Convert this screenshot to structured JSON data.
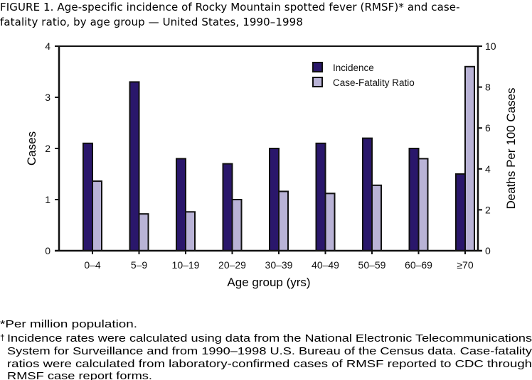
{
  "title_lines": [
    "FIGURE 1. Age-specific incidence of Rocky Mountain  spotted fever (RMSF)* and case-",
    "fatality ratio, by age  group  —  United  States,  1990–1998"
  ],
  "chart_data": {
    "type": "bar",
    "categories": [
      "0–4",
      "5–9",
      "10–19",
      "20–29",
      "30–39",
      "40–49",
      "50–59",
      "60–69",
      "≥70"
    ],
    "series": [
      {
        "name": "Incidence",
        "axis": "left",
        "color": "#2a176b",
        "values": [
          2.1,
          3.3,
          1.8,
          1.7,
          2.0,
          2.1,
          2.2,
          2.0,
          1.5
        ]
      },
      {
        "name": "Case-Fatality Ratio",
        "axis": "right",
        "color": "#b9b3d6",
        "values": [
          3.4,
          1.8,
          1.9,
          2.5,
          2.9,
          2.8,
          3.2,
          4.5,
          9.0
        ]
      }
    ],
    "xlabel": "Age group (yrs)",
    "ylabel": "Cases",
    "y2label": "Deaths Per 100 Cases",
    "ylim": [
      0,
      4
    ],
    "y2lim": [
      0,
      10
    ],
    "yticks": [
      0,
      1,
      2,
      3,
      4
    ],
    "y2ticks": [
      0,
      2,
      4,
      6,
      8,
      10
    ],
    "grid": false,
    "legend_placement": "top-right"
  },
  "footnotes": [
    "*Per million population.",
    "†",
    "Incidence rates were calculated using data from the National Electronic Telecommunications",
    "System for Surveillance and from 1990–1998 U.S. Bureau of the Census data. Case-fatality",
    "ratios were calculated from laboratory-confirmed cases of RMSF reported to CDC through",
    "RMSF case report forms."
  ]
}
